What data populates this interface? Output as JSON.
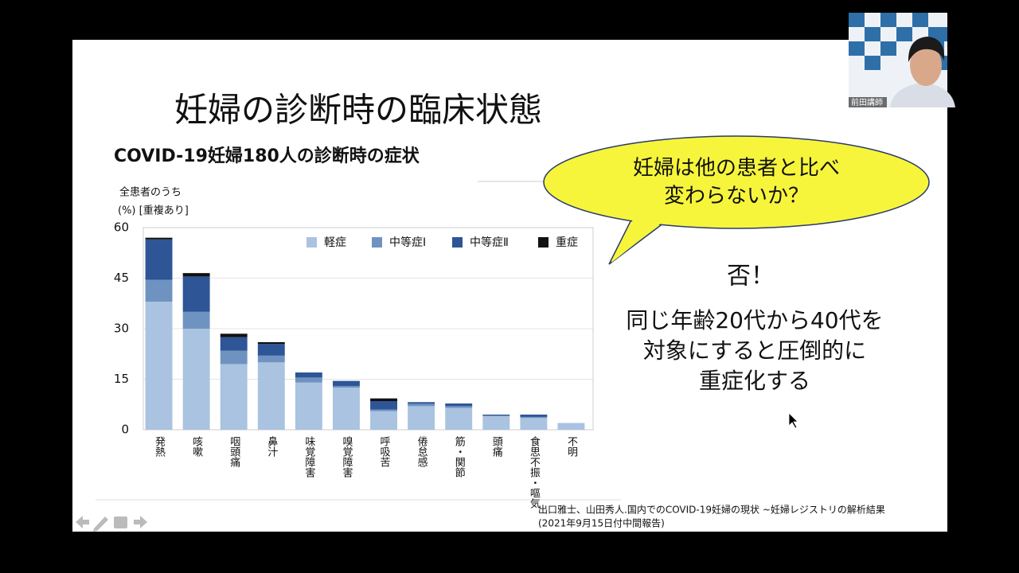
{
  "chart_data": {
    "type": "bar",
    "stacked": true,
    "title": "COVID-19妊婦180人の診断時の症状",
    "y_label": [
      "全患者のうち",
      "(%) [重複あり]"
    ],
    "categories": [
      "発熱",
      "咳嗽",
      "咽頭痛",
      "鼻汁",
      "味覚障害",
      "嗅覚障害",
      "呼吸苦",
      "倦怠感",
      "筋・関節",
      "頭痛",
      "食思不振・嘔気",
      "不明"
    ],
    "series": [
      {
        "name": "軽症",
        "color": "#a9c3e0",
        "values": [
          38,
          30,
          19.5,
          20,
          14,
          12.5,
          5.5,
          7,
          6.5,
          4,
          3.5,
          2
        ]
      },
      {
        "name": "中等症Ⅰ",
        "color": "#6f93c1",
        "values": [
          6.5,
          5,
          4,
          2,
          1.5,
          0.5,
          0.5,
          0.7,
          0.5,
          0.2,
          0.3,
          0
        ]
      },
      {
        "name": "中等症Ⅱ",
        "color": "#2e5596",
        "values": [
          12,
          10.5,
          4,
          3.5,
          1.5,
          1.5,
          2.5,
          0.5,
          0.8,
          0.3,
          0.7,
          0
        ]
      },
      {
        "name": "重症",
        "color": "#111111",
        "values": [
          0.5,
          1,
          1,
          0.5,
          0,
          0,
          0.8,
          0,
          0,
          0,
          0,
          0
        ]
      }
    ],
    "ylim": [
      0,
      60
    ],
    "yticks": [
      0,
      15,
      30,
      45,
      60
    ],
    "grid": true,
    "legend": "top-right"
  },
  "slide": {
    "title": "妊婦の診断時の臨床状態",
    "bubble": [
      "妊婦は他の患者と比べ",
      "変わらないか？"
    ],
    "answer": "否！",
    "statement": [
      "同じ年齢20代から40代を",
      "対象にすると圧倒的に",
      "重症化する"
    ],
    "citation": [
      "出口雅士、山田秀人.国内でのCOVID-19妊婦の現状 ~妊婦レジストリの解析結果",
      "(2021年9月15日付中間報告)"
    ]
  },
  "webcam": {
    "name": "前田講師"
  }
}
